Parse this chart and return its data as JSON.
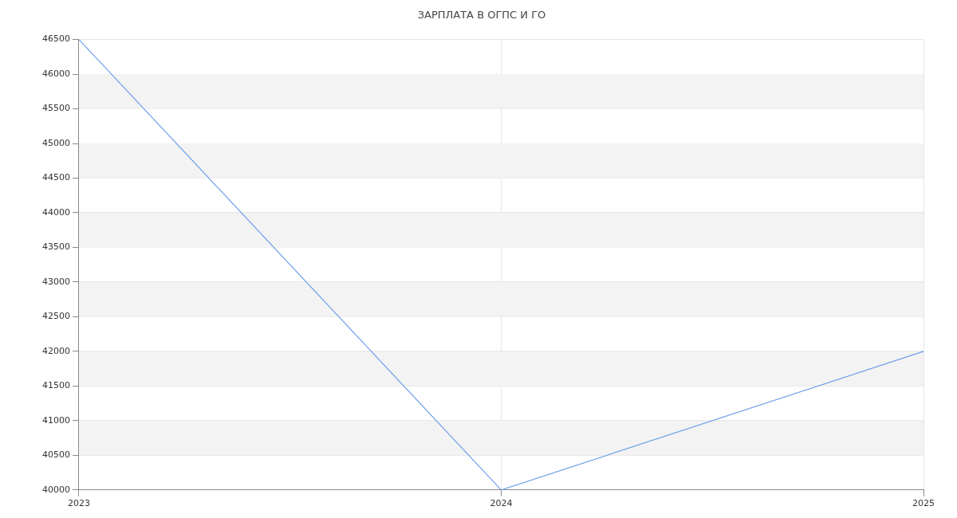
{
  "chart_data": {
    "type": "line",
    "title": "ЗАРПЛАТА В ОГПС И ГО",
    "categories": [
      "2023",
      "2024",
      "2025"
    ],
    "series": [
      {
        "color": "#6d9eeb",
        "values": [
          46500,
          40000,
          42000
        ]
      }
    ],
    "ylim": [
      40000,
      46500
    ],
    "yticks": [
      40000,
      40500,
      41000,
      41500,
      42000,
      42500,
      43000,
      43500,
      44000,
      44500,
      45000,
      45500,
      46000,
      46500
    ],
    "grid": true,
    "legend": false,
    "marker": "none",
    "line_style": "solid"
  }
}
